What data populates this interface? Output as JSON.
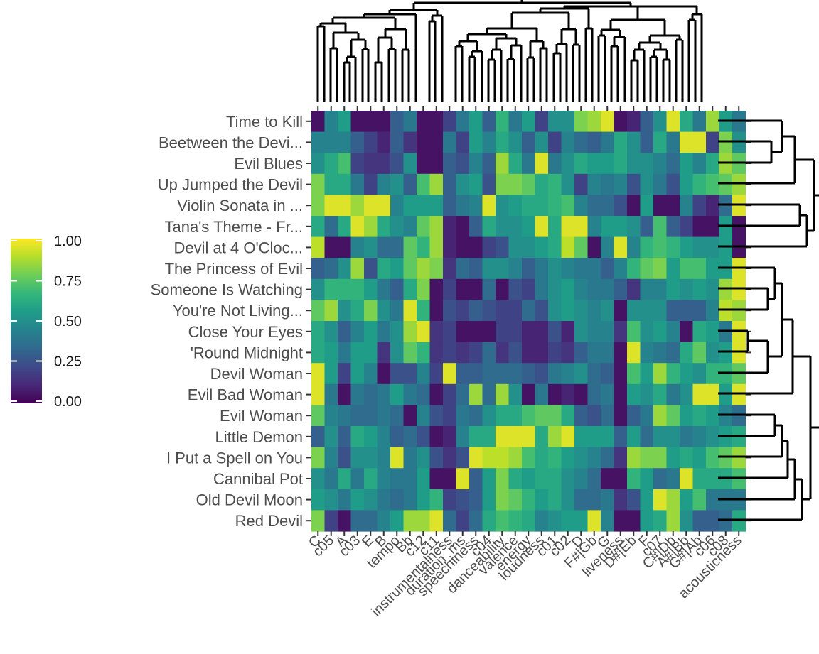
{
  "chart_data": {
    "type": "heatmap",
    "title": "",
    "xlabel": "",
    "ylabel": "",
    "rows": [
      "Time to Kill",
      "Beetween the Devi...",
      "Evil Blues",
      "Up Jumped the Devil",
      "Violin Sonata in ...",
      "Tana's Theme - Fr...",
      "Devil at 4 O'Cloc...",
      "The Princess of Evil",
      "Someone Is Watching",
      "You're Not Living...",
      "Close Your Eyes",
      "'Round Midnight",
      "Devil Woman",
      "Evil Bad Woman",
      "Evil Woman",
      "Little Demon",
      "I Put a Spell on You",
      "Cannibal Pot",
      "Old Devil Moon",
      "Red Devil"
    ],
    "columns": [
      "C",
      "c05",
      "A",
      "c03",
      "E",
      "B",
      "tempo",
      "Bb",
      "c12",
      "c11",
      "instrumentalness",
      "duration_ms",
      "speechiness",
      "c04",
      "danceability",
      "valence",
      "energy",
      "loudness",
      "c01",
      "c02",
      "D",
      "F#|Gb",
      "G",
      "liveness",
      "D#|Eb",
      "F",
      "c07",
      "C#|Db",
      "A#|Bb",
      "G#|Ab",
      "c06",
      "c08",
      "acousticness"
    ],
    "values": [
      [
        0.05,
        0.45,
        0.55,
        0.05,
        0.05,
        0.05,
        0.3,
        0.4,
        0.05,
        0.05,
        0.2,
        0.4,
        0.55,
        0.3,
        0.65,
        0.4,
        0.55,
        0.2,
        0.5,
        0.5,
        0.8,
        0.85,
        0.95,
        0.05,
        0.1,
        0.3,
        0.5,
        0.95,
        0.6,
        0.4,
        0.85,
        0.55,
        0.4
      ],
      [
        0.45,
        0.45,
        0.45,
        0.3,
        0.2,
        0.1,
        0.3,
        0.15,
        0.05,
        0.05,
        0.4,
        0.2,
        0.55,
        0.45,
        0.6,
        0.5,
        0.3,
        0.5,
        0.2,
        0.45,
        0.35,
        0.3,
        0.4,
        0.6,
        0.5,
        0.3,
        0.6,
        0.4,
        0.95,
        0.95,
        0.2,
        0.8,
        0.5
      ],
      [
        0.5,
        0.6,
        0.7,
        0.2,
        0.15,
        0.15,
        0.25,
        0.5,
        0.05,
        0.05,
        0.3,
        0.25,
        0.45,
        0.3,
        0.85,
        0.6,
        0.4,
        0.95,
        0.4,
        0.5,
        0.6,
        0.55,
        0.55,
        0.6,
        0.5,
        0.5,
        0.45,
        0.35,
        0.55,
        0.45,
        0.6,
        0.85,
        0.75
      ],
      [
        0.8,
        0.6,
        0.6,
        0.4,
        0.2,
        0.45,
        0.5,
        0.3,
        0.7,
        0.85,
        0.3,
        0.5,
        0.55,
        0.25,
        0.8,
        0.8,
        0.75,
        0.6,
        0.65,
        0.5,
        0.2,
        0.45,
        0.4,
        0.45,
        0.25,
        0.5,
        0.4,
        0.25,
        0.55,
        0.65,
        0.7,
        0.75,
        0.85
      ],
      [
        0.8,
        0.95,
        0.95,
        0.85,
        0.95,
        0.95,
        0.45,
        0.55,
        0.55,
        0.55,
        0.3,
        0.4,
        0.45,
        0.95,
        0.5,
        0.55,
        0.6,
        0.6,
        0.65,
        0.7,
        0.45,
        0.35,
        0.35,
        0.25,
        0.05,
        0.55,
        0.05,
        0.05,
        0.45,
        0.2,
        0.1,
        0.35,
        0.95
      ],
      [
        0.6,
        0.35,
        0.6,
        0.95,
        0.85,
        0.6,
        0.5,
        0.45,
        0.75,
        0.85,
        0.1,
        0.05,
        0.3,
        0.6,
        0.5,
        0.5,
        0.55,
        0.95,
        0.6,
        0.95,
        0.95,
        0.45,
        0.55,
        0.55,
        0.5,
        0.3,
        0.7,
        0.3,
        0.2,
        0.05,
        0.05,
        0.55,
        0.05
      ],
      [
        0.9,
        0.05,
        0.05,
        0.45,
        0.5,
        0.35,
        0.35,
        0.75,
        0.65,
        0.85,
        0.1,
        0.05,
        0.05,
        0.2,
        0.25,
        0.5,
        0.5,
        0.55,
        0.6,
        0.9,
        0.75,
        0.05,
        0.45,
        0.95,
        0.45,
        0.65,
        0.7,
        0.65,
        0.55,
        0.5,
        0.5,
        0.55,
        0.05
      ],
      [
        0.3,
        0.35,
        0.5,
        0.85,
        0.25,
        0.6,
        0.55,
        0.75,
        0.85,
        0.8,
        0.15,
        0.35,
        0.3,
        0.5,
        0.5,
        0.45,
        0.3,
        0.4,
        0.5,
        0.45,
        0.4,
        0.4,
        0.3,
        0.45,
        0.65,
        0.75,
        0.8,
        0.55,
        0.7,
        0.7,
        0.55,
        0.55,
        0.95
      ],
      [
        0.5,
        0.65,
        0.65,
        0.65,
        0.55,
        0.4,
        0.3,
        0.6,
        0.8,
        0.05,
        0.2,
        0.05,
        0.05,
        0.35,
        0.05,
        0.25,
        0.2,
        0.4,
        0.5,
        0.55,
        0.45,
        0.4,
        0.4,
        0.3,
        0.15,
        0.45,
        0.45,
        0.55,
        0.5,
        0.55,
        0.5,
        0.85,
        0.95
      ],
      [
        0.75,
        0.85,
        0.5,
        0.6,
        0.8,
        0.5,
        0.4,
        0.95,
        0.65,
        0.05,
        0.25,
        0.2,
        0.3,
        0.25,
        0.2,
        0.2,
        0.35,
        0.25,
        0.5,
        0.55,
        0.5,
        0.45,
        0.5,
        0.05,
        0.5,
        0.5,
        0.5,
        0.3,
        0.3,
        0.3,
        0.45,
        0.9,
        0.85
      ],
      [
        0.6,
        0.5,
        0.3,
        0.45,
        0.55,
        0.4,
        0.5,
        0.85,
        0.95,
        0.15,
        0.2,
        0.05,
        0.05,
        0.05,
        0.2,
        0.2,
        0.1,
        0.1,
        0.25,
        0.1,
        0.5,
        0.45,
        0.45,
        0.15,
        0.7,
        0.5,
        0.55,
        0.45,
        0.05,
        0.6,
        0.55,
        0.4,
        0.95
      ],
      [
        0.6,
        0.55,
        0.4,
        0.55,
        0.55,
        0.15,
        0.5,
        0.75,
        0.65,
        0.15,
        0.2,
        0.15,
        0.2,
        0.35,
        0.15,
        0.25,
        0.1,
        0.1,
        0.2,
        0.15,
        0.3,
        0.4,
        0.4,
        0.05,
        0.95,
        0.45,
        0.4,
        0.35,
        0.6,
        0.75,
        0.5,
        0.55,
        0.95
      ],
      [
        0.95,
        0.55,
        0.2,
        0.55,
        0.45,
        0.05,
        0.25,
        0.25,
        0.45,
        0.2,
        0.95,
        0.3,
        0.3,
        0.35,
        0.35,
        0.35,
        0.3,
        0.25,
        0.4,
        0.45,
        0.5,
        0.35,
        0.3,
        0.05,
        0.7,
        0.55,
        0.85,
        0.65,
        0.55,
        0.5,
        0.65,
        0.65,
        0.75
      ],
      [
        0.95,
        0.4,
        0.05,
        0.4,
        0.35,
        0.4,
        0.55,
        0.4,
        0.35,
        0.05,
        0.2,
        0.35,
        0.85,
        0.35,
        0.85,
        0.5,
        0.05,
        0.4,
        0.05,
        0.1,
        0.05,
        0.35,
        0.4,
        0.05,
        0.55,
        0.5,
        0.6,
        0.4,
        0.5,
        0.95,
        0.95,
        0.55,
        0.95
      ],
      [
        0.75,
        0.45,
        0.4,
        0.35,
        0.35,
        0.4,
        0.35,
        0.05,
        0.45,
        0.25,
        0.2,
        0.4,
        0.35,
        0.5,
        0.6,
        0.6,
        0.7,
        0.75,
        0.75,
        0.6,
        0.3,
        0.25,
        0.35,
        0.05,
        0.3,
        0.4,
        0.85,
        0.75,
        0.55,
        0.6,
        0.55,
        0.45,
        0.35
      ],
      [
        0.3,
        0.5,
        0.3,
        0.6,
        0.55,
        0.45,
        0.3,
        0.35,
        0.25,
        0.05,
        0.1,
        0.45,
        0.6,
        0.6,
        0.95,
        0.95,
        0.95,
        0.6,
        0.85,
        0.95,
        0.55,
        0.55,
        0.55,
        0.3,
        0.55,
        0.35,
        0.5,
        0.5,
        0.4,
        0.45,
        0.5,
        0.55,
        0.6
      ],
      [
        0.8,
        0.45,
        0.25,
        0.5,
        0.5,
        0.45,
        0.95,
        0.4,
        0.5,
        0.25,
        0.15,
        0.25,
        0.95,
        0.9,
        0.9,
        0.85,
        0.7,
        0.6,
        0.65,
        0.55,
        0.5,
        0.45,
        0.35,
        0.15,
        0.85,
        0.8,
        0.8,
        0.55,
        0.6,
        0.55,
        0.7,
        0.75,
        0.85
      ],
      [
        0.5,
        0.4,
        0.6,
        0.4,
        0.6,
        0.45,
        0.4,
        0.4,
        0.55,
        0.05,
        0.05,
        0.95,
        0.3,
        0.55,
        0.8,
        0.6,
        0.55,
        0.6,
        0.6,
        0.5,
        0.45,
        0.35,
        0.05,
        0.05,
        0.65,
        0.55,
        0.35,
        0.4,
        0.95,
        0.6,
        0.6,
        0.6,
        0.7
      ],
      [
        0.55,
        0.5,
        0.4,
        0.55,
        0.5,
        0.4,
        0.35,
        0.4,
        0.55,
        0.65,
        0.2,
        0.25,
        0.3,
        0.55,
        0.8,
        0.75,
        0.65,
        0.55,
        0.6,
        0.5,
        0.35,
        0.35,
        0.4,
        0.15,
        0.25,
        0.55,
        0.95,
        0.85,
        0.55,
        0.7,
        0.4,
        0.4,
        0.4
      ],
      [
        0.8,
        0.2,
        0.05,
        0.35,
        0.35,
        0.45,
        0.55,
        0.85,
        0.85,
        0.95,
        0.35,
        0.2,
        0.35,
        0.6,
        0.7,
        0.65,
        0.6,
        0.45,
        0.5,
        0.55,
        0.55,
        0.95,
        0.45,
        0.05,
        0.05,
        0.55,
        0.6,
        0.85,
        0.5,
        0.3,
        0.3,
        0.35,
        0.6
      ]
    ],
    "legend": {
      "ticks": [
        "1.00",
        "0.75",
        "0.50",
        "0.25",
        "0.00"
      ],
      "min": 0,
      "max": 1,
      "placement": "left"
    },
    "colormap": [
      "#440154",
      "#482878",
      "#3e4989",
      "#31688e",
      "#26828e",
      "#1f9e89",
      "#35b779",
      "#6ece58",
      "#b5de2b",
      "#fde725"
    ]
  }
}
